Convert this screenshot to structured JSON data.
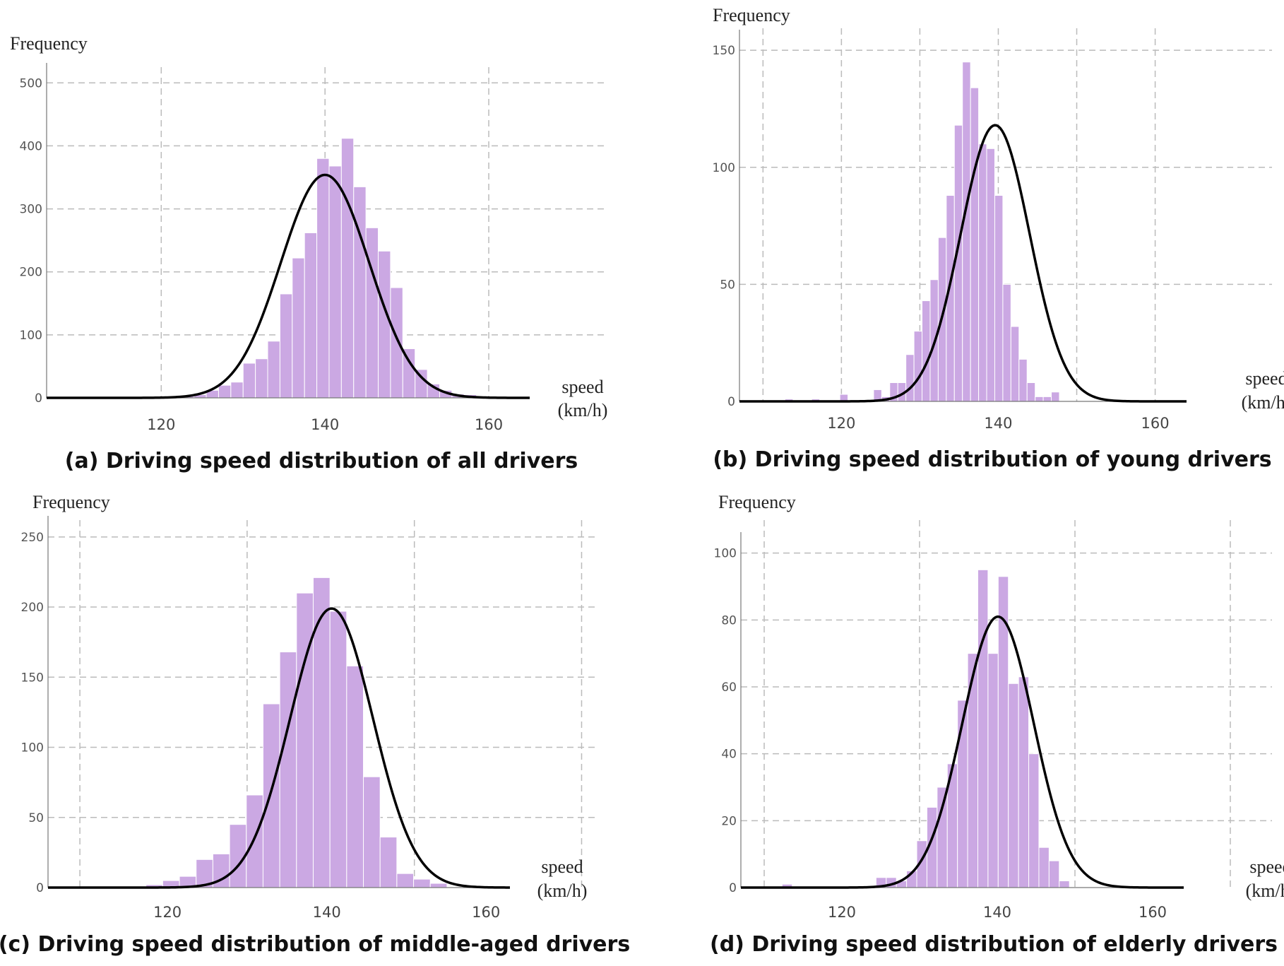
{
  "chart_data": [
    {
      "type": "histogram",
      "panel": "a",
      "ylabel": "Frequency",
      "xlabel": "speed",
      "xlabel_unit": "(km/h)",
      "caption": "(a) Driving speed distribution of all drivers",
      "xlim": [
        106,
        165
      ],
      "ylim": [
        0,
        525
      ],
      "yticks": [
        0,
        100,
        200,
        300,
        400,
        500
      ],
      "xticks": [
        120,
        140,
        160
      ],
      "xgrid": [
        120,
        140,
        160
      ],
      "bin_start": 119.5,
      "bin_width": 1.5,
      "values": [
        2,
        2,
        3,
        5,
        12,
        20,
        25,
        55,
        62,
        90,
        165,
        222,
        262,
        380,
        368,
        412,
        335,
        270,
        233,
        175,
        78,
        45,
        22,
        12,
        6,
        5
      ],
      "curve": {
        "mean": 140,
        "sd": 5.4,
        "peak": 354
      },
      "grid": true
    },
    {
      "type": "histogram",
      "panel": "b",
      "ylabel": "Frequency",
      "xlabel": "speed",
      "xlabel_unit": "(km/h)",
      "caption": "(b) Driving speed distribution of young drivers",
      "xlim": [
        107,
        164
      ],
      "ylim": [
        0,
        157
      ],
      "yticks": [
        0,
        50,
        100,
        150
      ],
      "xticks": [
        120,
        140,
        160
      ],
      "xgrid": [
        110,
        120,
        130,
        140,
        150,
        160
      ],
      "bin_start": 124.1,
      "bin_width": 1.03,
      "values": [
        5,
        2,
        8,
        8,
        20,
        30,
        43,
        52,
        70,
        88,
        118,
        145,
        134,
        110,
        108,
        88,
        50,
        32,
        18,
        8,
        2,
        2,
        4
      ],
      "extra_bars": [
        {
          "x": 112.8,
          "value": 1
        },
        {
          "x": 116.2,
          "value": 1
        },
        {
          "x": 119.8,
          "value": 3
        }
      ],
      "curve": {
        "mean": 139.6,
        "sd": 4.4,
        "peak": 118
      },
      "grid": true
    },
    {
      "type": "histogram",
      "panel": "c",
      "ylabel": "Frequency",
      "xlabel": "speed",
      "xlabel_unit": "(km/h)",
      "caption": "(c) Driving speed distribution of middle-aged drivers",
      "xlim": [
        105,
        163
      ],
      "ylim": [
        0,
        262
      ],
      "yticks": [
        0,
        50,
        100,
        150,
        200,
        250
      ],
      "xticks": [
        120,
        140,
        160
      ],
      "xgrid": [
        109,
        130,
        151,
        172
      ],
      "bin_start": 117.3,
      "bin_width": 2.1,
      "values": [
        2,
        5,
        8,
        20,
        24,
        45,
        66,
        131,
        168,
        210,
        221,
        197,
        158,
        79,
        36,
        10,
        6,
        3
      ],
      "curve": {
        "mean": 140.6,
        "sd": 5.2,
        "peak": 199
      },
      "grid": true
    },
    {
      "type": "histogram",
      "panel": "d",
      "ylabel": "Frequency",
      "xlabel": "speed",
      "xlabel_unit": "(km/h)",
      "caption": "(d) Driving speed distribution of elderly drivers",
      "xlim": [
        107,
        164
      ],
      "ylim": [
        0,
        105
      ],
      "yticks": [
        0,
        20,
        40,
        60,
        80,
        100
      ],
      "xticks": [
        120,
        140,
        160
      ],
      "xgrid": [
        110,
        130,
        150,
        170
      ],
      "bin_start": 124.4,
      "bin_width": 1.31,
      "values": [
        3,
        3,
        2,
        5,
        14,
        24,
        30,
        37,
        56,
        70,
        95,
        70,
        93,
        61,
        63,
        40,
        12,
        8,
        2
      ],
      "extra_bars": [
        {
          "x": 112.3,
          "value": 1
        }
      ],
      "curve": {
        "mean": 140.1,
        "sd": 4.6,
        "peak": 81
      },
      "grid": true
    }
  ]
}
